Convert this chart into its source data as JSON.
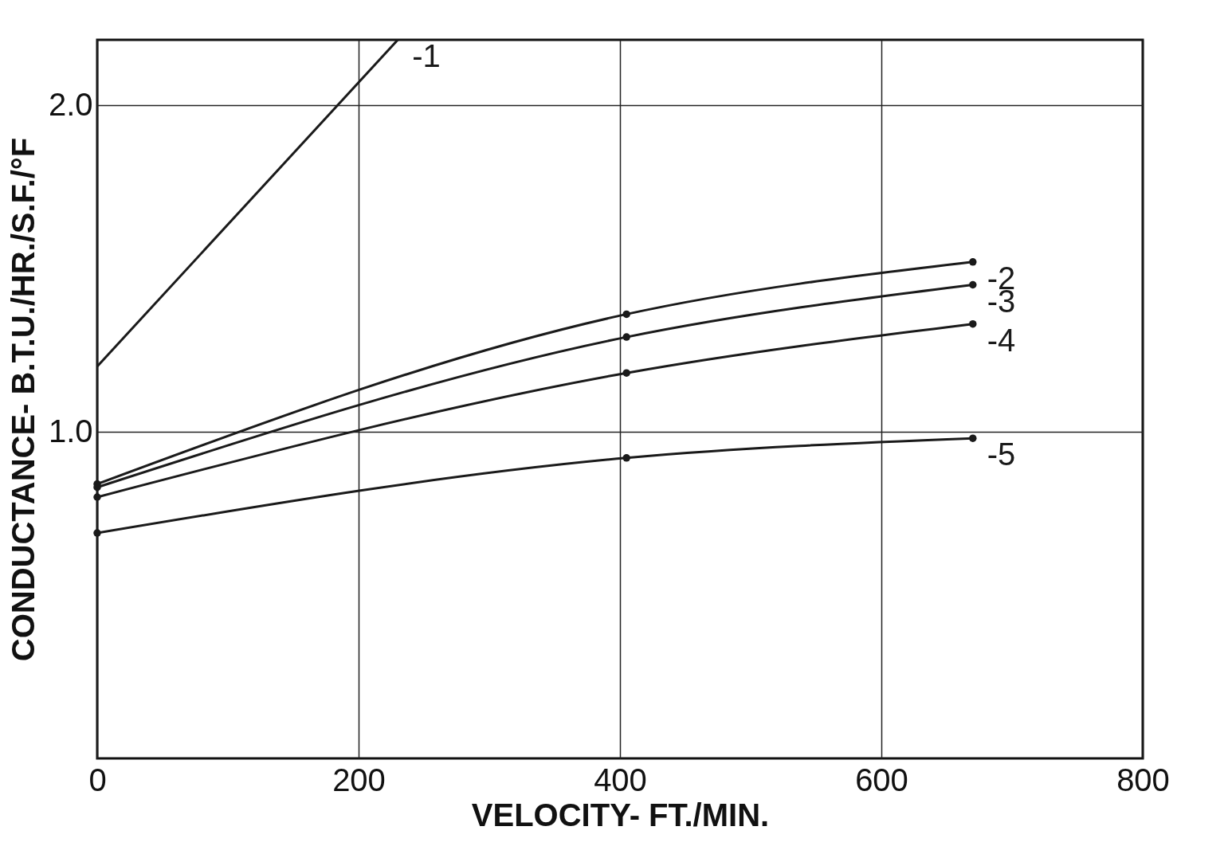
{
  "chart_data": {
    "type": "line",
    "xlabel": "VELOCITY- FT./MIN.",
    "ylabel": "CONDUCTANCE- B.T.U./HR./S.F./°F",
    "xlim": [
      0,
      800
    ],
    "xticks": [
      0,
      200,
      400,
      600,
      800
    ],
    "ylim": [
      0,
      2.2
    ],
    "yticks": [
      {
        "value": 1,
        "label": "1.0"
      },
      {
        "value": 2,
        "label": "2.0"
      }
    ],
    "grid": true,
    "line_style": "solid",
    "series": [
      {
        "name": "-1",
        "color": "#1a1a1a",
        "marker": "none",
        "x": [
          0,
          230
        ],
        "values": [
          1.2,
          2.2
        ]
      },
      {
        "name": "-2",
        "color": "#1a1a1a",
        "marker": "circle",
        "x": [
          0,
          405,
          670
        ],
        "values": [
          0.84,
          1.36,
          1.52
        ]
      },
      {
        "name": "-3",
        "color": "#1a1a1a",
        "marker": "circle",
        "x": [
          0,
          405,
          670
        ],
        "values": [
          0.83,
          1.29,
          1.45
        ]
      },
      {
        "name": "-4",
        "color": "#1a1a1a",
        "marker": "circle",
        "x": [
          0,
          405,
          670
        ],
        "values": [
          0.8,
          1.18,
          1.33
        ]
      },
      {
        "name": "-5",
        "color": "#1a1a1a",
        "marker": "circle",
        "x": [
          0,
          405,
          670
        ],
        "values": [
          0.69,
          0.92,
          0.98
        ]
      }
    ]
  }
}
